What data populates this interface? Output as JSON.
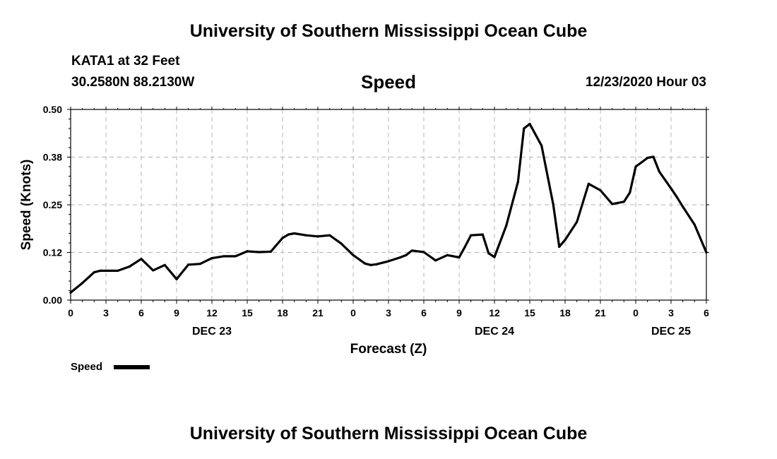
{
  "header": {
    "top_title": "University of Southern Mississippi Ocean Cube",
    "station": "KATA1 at 32 Feet",
    "coords": "30.2580N 88.2130W",
    "chart_title": "Speed",
    "datetime": "12/23/2020 Hour 03"
  },
  "footer": {
    "bottom_title": "University of Southern Mississippi Ocean Cube"
  },
  "chart_data": {
    "type": "line",
    "title": "Speed",
    "xlabel": "Forecast (Z)",
    "ylabel": "Speed (Knots)",
    "xlim": [
      0,
      54
    ],
    "ylim": [
      0,
      0.5
    ],
    "yticks": [
      0.0,
      0.125,
      0.25,
      0.375,
      0.5
    ],
    "ytick_labels": [
      "0.00",
      "0.12",
      "0.25",
      "0.38",
      "0.50"
    ],
    "xtick_positions": [
      0,
      3,
      6,
      9,
      12,
      15,
      18,
      21,
      24,
      27,
      30,
      33,
      36,
      39,
      42,
      45,
      48,
      51,
      54
    ],
    "xtick_labels": [
      "0",
      "3",
      "6",
      "9",
      "12",
      "15",
      "18",
      "21",
      "0",
      "3",
      "6",
      "9",
      "12",
      "15",
      "18",
      "21",
      "0",
      "3",
      "6"
    ],
    "date_labels": [
      {
        "x": 12,
        "label": "DEC 23"
      },
      {
        "x": 36,
        "label": "DEC 24"
      },
      {
        "x": 51,
        "label": "DEC 25"
      }
    ],
    "grid": true,
    "legend": "bottom-left",
    "line_color": "#000000",
    "series": [
      {
        "name": "Speed",
        "x": [
          0,
          1,
          2,
          2.5,
          3,
          4,
          5,
          6,
          7,
          8,
          9,
          10,
          11,
          12,
          13,
          14,
          15,
          16,
          17,
          18,
          18.5,
          19,
          20,
          21,
          22,
          23,
          24,
          25,
          25.5,
          26,
          27,
          28,
          28.5,
          29,
          30,
          31,
          32,
          33,
          33.5,
          34,
          35,
          35.5,
          36,
          37,
          38,
          38.5,
          39,
          40,
          41,
          41.5,
          42,
          43,
          44,
          45,
          46,
          47,
          47.5,
          48,
          49,
          49.5,
          50,
          51,
          51.5,
          52,
          53,
          54
        ],
        "values": [
          0.02,
          0.045,
          0.073,
          0.077,
          0.077,
          0.077,
          0.088,
          0.108,
          0.078,
          0.092,
          0.055,
          0.093,
          0.095,
          0.11,
          0.115,
          0.115,
          0.128,
          0.126,
          0.127,
          0.163,
          0.172,
          0.175,
          0.17,
          0.167,
          0.17,
          0.148,
          0.118,
          0.096,
          0.092,
          0.094,
          0.102,
          0.112,
          0.118,
          0.13,
          0.126,
          0.104,
          0.118,
          0.112,
          0.14,
          0.17,
          0.172,
          0.123,
          0.113,
          0.195,
          0.31,
          0.45,
          0.462,
          0.405,
          0.25,
          0.14,
          0.158,
          0.205,
          0.305,
          0.288,
          0.252,
          0.258,
          0.282,
          0.35,
          0.373,
          0.376,
          0.337,
          0.293,
          0.27,
          0.245,
          0.198,
          0.125
        ]
      }
    ]
  }
}
